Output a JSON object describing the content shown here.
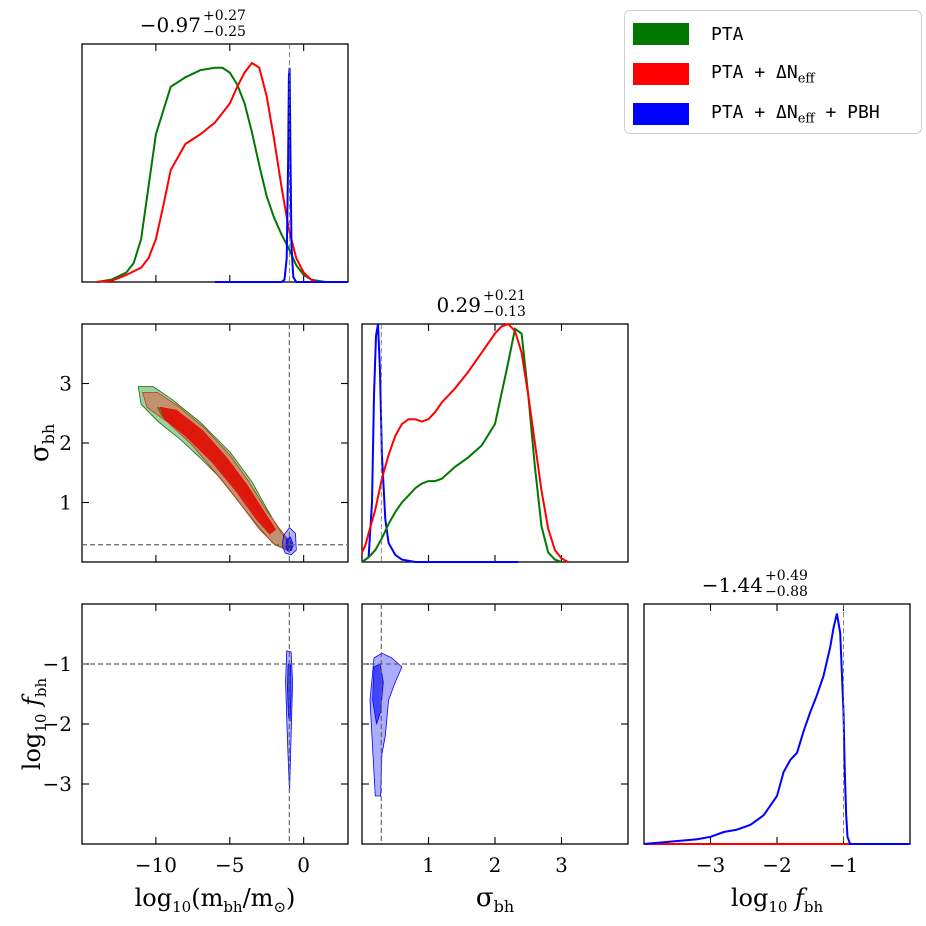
{
  "chart_data": {
    "type": "corner",
    "parameters": [
      "m_bh",
      "sigma_bh",
      "f_bh"
    ],
    "truths": {
      "log10_m_bh": -0.97,
      "sigma_bh": 0.29,
      "log10_f_bh": -1.0
    },
    "titles": {
      "m_bh": {
        "median": "−0.97",
        "plus": "+0.27",
        "minus": "−0.25"
      },
      "sigma_bh": {
        "median": "0.29",
        "plus": "+0.21",
        "minus": "−0.13"
      },
      "f_bh": {
        "median": "−1.44",
        "plus": "+0.49",
        "minus": "−0.88"
      }
    },
    "axes": {
      "m_bh": {
        "range": [
          -15,
          3
        ],
        "ticks": [
          -10,
          -5,
          0
        ],
        "tick_labels": [
          "−10",
          "−5",
          "0"
        ],
        "label_pre": "log",
        "label_sub10": "10",
        "label_main": "(m",
        "label_sub": "bh",
        "label_post": "/m",
        "label_sun": "⊙",
        "label_close": ")"
      },
      "sigma_bh": {
        "range": [
          0,
          4
        ],
        "ticks": [
          1,
          2,
          3
        ],
        "tick_labels": [
          "1",
          "2",
          "3"
        ],
        "label": "σ",
        "label_sub": "bh"
      },
      "f_bh": {
        "range": [
          -4,
          0
        ],
        "ticks": [
          -3,
          -2,
          -1
        ],
        "tick_labels": [
          "−3",
          "−2",
          "−1"
        ],
        "label_pre": "log",
        "label_sub10": "10",
        "label_main": "f",
        "label_sub": "bh"
      }
    },
    "legend": [
      {
        "label": "PTA",
        "color": "#007800"
      },
      {
        "label": "PTA + ΔN",
        "sub": "eff",
        "color": "#ff0000"
      },
      {
        "label": "PTA + ΔN",
        "sub": "eff",
        "suffix": " + PBH",
        "color": "#0000ff"
      }
    ],
    "series": {
      "pta_m": {
        "color": "#007800",
        "x": [
          -14,
          -13,
          -12,
          -11.5,
          -11,
          -10.5,
          -10,
          -9,
          -8,
          -7,
          -6,
          -5.5,
          -5,
          -4.5,
          -4,
          -3.5,
          -3,
          -2.5,
          -2,
          -1.5,
          -1,
          -0.5,
          0,
          0.5,
          1,
          1.5,
          2,
          3
        ],
        "y": [
          0,
          0.01,
          0.04,
          0.08,
          0.18,
          0.4,
          0.62,
          0.82,
          0.86,
          0.89,
          0.9,
          0.9,
          0.88,
          0.83,
          0.75,
          0.63,
          0.49,
          0.36,
          0.27,
          0.2,
          0.14,
          0.07,
          0.03,
          0.01,
          0.005,
          0,
          0,
          0
        ]
      },
      "ptaneff_m": {
        "color": "#ff0000",
        "x": [
          -14,
          -13,
          -12,
          -11,
          -10.5,
          -10,
          -9.5,
          -9,
          -8,
          -7,
          -6,
          -5,
          -4.5,
          -4,
          -3.5,
          -3,
          -2.5,
          -2,
          -1.5,
          -1,
          -0.5,
          0,
          0.5,
          1,
          2,
          3
        ],
        "y": [
          0,
          0.005,
          0.03,
          0.06,
          0.1,
          0.18,
          0.32,
          0.47,
          0.58,
          0.62,
          0.67,
          0.75,
          0.82,
          0.88,
          0.92,
          0.9,
          0.78,
          0.6,
          0.4,
          0.22,
          0.1,
          0.04,
          0.01,
          0,
          0,
          0
        ]
      },
      "pbh_m": {
        "color": "#0000ff",
        "x": [
          -6,
          -2,
          -1.5,
          -1.3,
          -1.15,
          -1.05,
          -1.0,
          -0.95,
          -0.9,
          -0.82,
          -0.7,
          -0.5,
          0,
          3
        ],
        "y": [
          0,
          0,
          0,
          0.01,
          0.1,
          0.5,
          0.86,
          0.9,
          0.55,
          0.15,
          0.02,
          0,
          0,
          0
        ]
      },
      "pbh_sigma": {
        "color": "#0000ff",
        "x": [
          0,
          0.1,
          0.15,
          0.18,
          0.21,
          0.24,
          0.27,
          0.3,
          0.35,
          0.4,
          0.5,
          0.6,
          0.8,
          1,
          1.5,
          2.35
        ],
        "y": [
          0,
          0.02,
          0.25,
          0.7,
          0.95,
          1.0,
          0.8,
          0.45,
          0.18,
          0.08,
          0.03,
          0.01,
          0,
          0,
          0,
          0
        ]
      },
      "pta_sigma": {
        "color": "#007800",
        "x": [
          0,
          0.1,
          0.2,
          0.3,
          0.4,
          0.5,
          0.6,
          0.7,
          0.8,
          0.9,
          1,
          1.1,
          1.2,
          1.4,
          1.6,
          1.8,
          2,
          2.2,
          2.3,
          2.4,
          2.5,
          2.6,
          2.7,
          2.8,
          2.9,
          3.0
        ],
        "y": [
          0,
          0.02,
          0.05,
          0.1,
          0.16,
          0.21,
          0.25,
          0.28,
          0.31,
          0.33,
          0.34,
          0.34,
          0.35,
          0.4,
          0.44,
          0.49,
          0.58,
          0.84,
          0.98,
          0.96,
          0.7,
          0.4,
          0.15,
          0.04,
          0.01,
          0
        ]
      },
      "ptaneff_sigma": {
        "color": "#ff0000",
        "x": [
          0,
          0.05,
          0.1,
          0.2,
          0.3,
          0.4,
          0.5,
          0.6,
          0.7,
          0.8,
          0.9,
          1,
          1.1,
          1.2,
          1.4,
          1.6,
          1.8,
          2,
          2.1,
          2.2,
          2.3,
          2.4,
          2.5,
          2.6,
          2.7,
          2.8,
          2.9,
          3.0,
          3.1
        ],
        "y": [
          0.04,
          0.07,
          0.12,
          0.22,
          0.35,
          0.45,
          0.53,
          0.58,
          0.6,
          0.6,
          0.59,
          0.6,
          0.63,
          0.67,
          0.73,
          0.8,
          0.88,
          0.96,
          0.99,
          1.0,
          0.97,
          0.88,
          0.7,
          0.5,
          0.3,
          0.14,
          0.05,
          0.015,
          0
        ]
      },
      "pbh_f": {
        "color": "#0000ff",
        "x": [
          -4,
          -3.6,
          -3.2,
          -3.0,
          -2.8,
          -2.6,
          -2.4,
          -2.2,
          -2.0,
          -1.9,
          -1.8,
          -1.7,
          -1.6,
          -1.5,
          -1.4,
          -1.3,
          -1.2,
          -1.15,
          -1.1,
          -1.05,
          -1.0,
          -0.98,
          -0.96,
          -0.94,
          -0.9,
          0
        ],
        "y": [
          0,
          0.01,
          0.02,
          0.03,
          0.05,
          0.06,
          0.08,
          0.12,
          0.2,
          0.3,
          0.35,
          0.38,
          0.47,
          0.55,
          0.62,
          0.7,
          0.82,
          0.9,
          0.96,
          0.88,
          0.55,
          0.3,
          0.12,
          0.03,
          0,
          0
        ]
      },
      "red_f": {
        "color": "#ff0000",
        "x": [
          -4,
          0
        ],
        "y": [
          0,
          0
        ]
      }
    },
    "contours_mx_sigma": [
      {
        "color": "#007800",
        "fill": "rgba(0,128,0,0.38)",
        "level": "outer",
        "points": [
          [
            -11.2,
            2.95
          ],
          [
            -10.2,
            2.95
          ],
          [
            -9,
            2.75
          ],
          [
            -7,
            2.35
          ],
          [
            -5,
            1.85
          ],
          [
            -3.5,
            1.35
          ],
          [
            -2.5,
            0.9
          ],
          [
            -1.8,
            0.6
          ],
          [
            -1.2,
            0.38
          ],
          [
            -0.7,
            0.26
          ],
          [
            -1.0,
            0.18
          ],
          [
            -2.1,
            0.32
          ],
          [
            -3.0,
            0.58
          ],
          [
            -4.2,
            0.95
          ],
          [
            -5.6,
            1.4
          ],
          [
            -7.0,
            1.75
          ],
          [
            -8.3,
            2.05
          ],
          [
            -9.8,
            2.35
          ],
          [
            -11.0,
            2.65
          ]
        ]
      },
      {
        "color": "#007800",
        "fill": "rgba(0,110,0,0.75)",
        "level": "inner",
        "points": [
          [
            -9.9,
            2.6
          ],
          [
            -8.6,
            2.5
          ],
          [
            -7.0,
            2.15
          ],
          [
            -5.2,
            1.7
          ],
          [
            -3.6,
            1.2
          ],
          [
            -2.6,
            0.8
          ],
          [
            -2.1,
            0.6
          ],
          [
            -2.4,
            0.55
          ],
          [
            -3.3,
            0.9
          ],
          [
            -4.8,
            1.35
          ],
          [
            -6.6,
            1.85
          ],
          [
            -8.2,
            2.2
          ],
          [
            -9.6,
            2.45
          ]
        ]
      },
      {
        "color": "#c0391a",
        "fill": "rgba(235,70,50,0.45)",
        "level": "outer",
        "points": [
          [
            -10.9,
            2.85
          ],
          [
            -9.9,
            2.85
          ],
          [
            -8.5,
            2.62
          ],
          [
            -6.7,
            2.25
          ],
          [
            -5.0,
            1.8
          ],
          [
            -3.7,
            1.35
          ],
          [
            -2.6,
            0.9
          ],
          [
            -1.6,
            0.55
          ],
          [
            -0.8,
            0.3
          ],
          [
            -1.1,
            0.2
          ],
          [
            -1.9,
            0.28
          ],
          [
            -3.0,
            0.55
          ],
          [
            -4.2,
            0.95
          ],
          [
            -5.8,
            1.45
          ],
          [
            -7.6,
            1.98
          ],
          [
            -9.2,
            2.35
          ],
          [
            -10.6,
            2.6
          ]
        ]
      },
      {
        "color": "#e01010",
        "fill": "rgba(225,20,10,0.95)",
        "level": "inner",
        "points": [
          [
            -9.7,
            2.6
          ],
          [
            -8.6,
            2.55
          ],
          [
            -6.8,
            2.2
          ],
          [
            -5.2,
            1.75
          ],
          [
            -3.8,
            1.28
          ],
          [
            -2.7,
            0.85
          ],
          [
            -1.9,
            0.55
          ],
          [
            -2.3,
            0.47
          ],
          [
            -3.2,
            0.72
          ],
          [
            -4.6,
            1.2
          ],
          [
            -6.2,
            1.68
          ],
          [
            -8.0,
            2.12
          ],
          [
            -9.4,
            2.4
          ]
        ]
      },
      {
        "color": "#0000ff",
        "fill": "rgba(0,0,255,0.3)",
        "level": "outer",
        "points": [
          [
            -1.35,
            0.45
          ],
          [
            -0.95,
            0.58
          ],
          [
            -0.55,
            0.48
          ],
          [
            -0.5,
            0.2
          ],
          [
            -0.85,
            0.12
          ],
          [
            -1.25,
            0.15
          ],
          [
            -1.45,
            0.28
          ]
        ]
      },
      {
        "color": "#0000ff",
        "fill": "rgba(0,0,255,0.65)",
        "level": "inner",
        "points": [
          [
            -1.15,
            0.38
          ],
          [
            -0.9,
            0.42
          ],
          [
            -0.75,
            0.32
          ],
          [
            -0.8,
            0.2
          ],
          [
            -1.05,
            0.18
          ],
          [
            -1.2,
            0.26
          ]
        ]
      }
    ],
    "contours_mx_f": [
      {
        "fill": "rgba(0,0,255,0.3)",
        "color": "#0000ff",
        "level": "outer",
        "points": [
          [
            -1.15,
            -0.78
          ],
          [
            -0.85,
            -0.8
          ],
          [
            -0.75,
            -1.3
          ],
          [
            -0.85,
            -2.2
          ],
          [
            -0.95,
            -3.1
          ],
          [
            -1.0,
            -2.9
          ],
          [
            -1.12,
            -2.1
          ],
          [
            -1.22,
            -1.3
          ]
        ]
      },
      {
        "fill": "rgba(0,0,255,0.65)",
        "color": "#0000ff",
        "level": "inner",
        "points": [
          [
            -1.05,
            -1.0
          ],
          [
            -0.88,
            -1.02
          ],
          [
            -0.85,
            -1.5
          ],
          [
            -0.92,
            -1.95
          ],
          [
            -1.02,
            -1.9
          ],
          [
            -1.1,
            -1.4
          ]
        ]
      }
    ],
    "contours_sigma_f": [
      {
        "fill": "rgba(0,0,255,0.32)",
        "color": "#0000ff",
        "level": "outer",
        "points": [
          [
            0.18,
            -0.9
          ],
          [
            0.3,
            -0.82
          ],
          [
            0.45,
            -0.9
          ],
          [
            0.6,
            -1.05
          ],
          [
            0.5,
            -1.3
          ],
          [
            0.4,
            -1.6
          ],
          [
            0.35,
            -2.2
          ],
          [
            0.3,
            -2.5
          ],
          [
            0.28,
            -3.2
          ],
          [
            0.2,
            -3.2
          ],
          [
            0.16,
            -2.4
          ],
          [
            0.12,
            -1.6
          ]
        ]
      },
      {
        "fill": "rgba(0,0,255,0.6)",
        "color": "#0000ff",
        "level": "inner",
        "points": [
          [
            0.18,
            -1.05
          ],
          [
            0.27,
            -1.0
          ],
          [
            0.32,
            -1.3
          ],
          [
            0.28,
            -1.8
          ],
          [
            0.22,
            -2.0
          ],
          [
            0.16,
            -1.6
          ]
        ]
      }
    ]
  }
}
